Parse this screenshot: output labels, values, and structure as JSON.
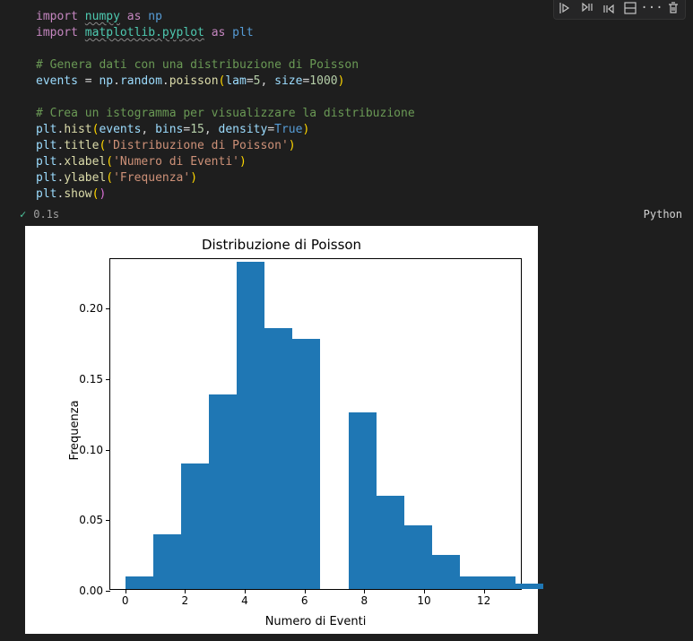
{
  "toolbar": {
    "icons": [
      "run-by-line-icon",
      "execute-above-icon",
      "execute-below-icon",
      "split-icon",
      "more-icon",
      "delete-icon"
    ]
  },
  "code": {
    "l1": {
      "import": "import",
      "numpy": "numpy",
      "as": "as",
      "np": "np"
    },
    "l2": {
      "import": "import",
      "matplotlib_pyplot": "matplotlib.pyplot",
      "as": "as",
      "plt": "plt"
    },
    "l4": {
      "comment": "# Genera dati con una distribuzione di Poisson"
    },
    "l5": {
      "events": "events",
      "eq": " = ",
      "np": "np",
      "dot1": ".",
      "random": "random",
      "dot2": ".",
      "poisson": "poisson",
      "op": "(",
      "lam": "lam",
      "eq2": "=",
      "five": "5",
      "comma": ", ",
      "size": "size",
      "eq3": "=",
      "thousand": "1000",
      "cp": ")"
    },
    "l7": {
      "comment": "# Crea un istogramma per visualizzare la distribuzione"
    },
    "l8": {
      "plt": "plt",
      "dot": ".",
      "hist": "hist",
      "op": "(",
      "events": "events",
      "c1": ", ",
      "bins": "bins",
      "eq": "=",
      "fifteen": "15",
      "c2": ", ",
      "density": "density",
      "eq2": "=",
      "true": "True",
      "cp": ")"
    },
    "l9": {
      "plt": "plt",
      "dot": ".",
      "title": "title",
      "op": "(",
      "str": "'Distribuzione di Poisson'",
      "cp": ")"
    },
    "l10": {
      "plt": "plt",
      "dot": ".",
      "xlabel": "xlabel",
      "op": "(",
      "str": "'Numero di Eventi'",
      "cp": ")"
    },
    "l11": {
      "plt": "plt",
      "dot": ".",
      "ylabel": "ylabel",
      "op": "(",
      "str": "'Frequenza'",
      "cp": ")"
    },
    "l12": {
      "plt": "plt",
      "dot": ".",
      "show": "show",
      "op": "(",
      "cp": ")"
    }
  },
  "status": {
    "check": "✓",
    "time": "0.1s",
    "language": "Python"
  },
  "chart": {
    "type": "histogram",
    "title": "Distribuzione di Poisson",
    "xlabel": "Numero di Eventi",
    "ylabel": "Frequenza",
    "bar_color": "#1f77b4",
    "background_color": "#ffffff",
    "border_color": "#000000",
    "title_fontsize": 15,
    "label_fontsize": 13,
    "tick_fontsize": 12,
    "x_min": -0.5,
    "x_max": 13.3,
    "ylim": [
      0,
      0.235
    ],
    "yticks": [
      0.0,
      0.05,
      0.1,
      0.15,
      0.2
    ],
    "ytick_labels": [
      "0.00",
      "0.05",
      "0.10",
      "0.15",
      "0.20"
    ],
    "xticks": [
      0,
      2,
      4,
      6,
      8,
      10,
      12
    ],
    "xtick_labels": [
      "0",
      "2",
      "4",
      "6",
      "8",
      "10",
      "12"
    ],
    "bin_edges": [
      0,
      0.93,
      1.87,
      2.8,
      3.73,
      4.67,
      5.6,
      6.53,
      7.47,
      8.4,
      9.33,
      10.27,
      11.2,
      12.13,
      13.07,
      14.0
    ],
    "values": [
      0.009,
      0.039,
      0.089,
      0.138,
      0.232,
      0.185,
      0.177,
      0.0,
      0.125,
      0.066,
      0.045,
      0.024,
      0.009,
      0.009,
      0.004
    ]
  }
}
